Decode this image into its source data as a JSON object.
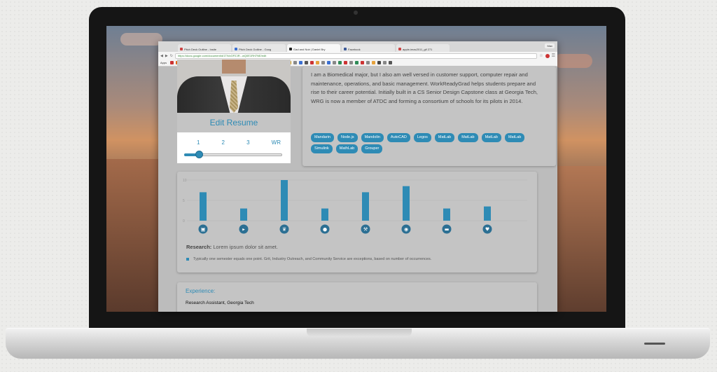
{
  "browser": {
    "tabs": [
      {
        "label": "Pitch Deck Outline - Insite",
        "favicon": "#c44"
      },
      {
        "label": "Pitch Deck Outline - Goog",
        "favicon": "#3b6fd1"
      },
      {
        "label": "Gad and Noir | Daniel Bry",
        "favicon": "#222"
      },
      {
        "label": "Facebook",
        "favicon": "#3b5998"
      },
      {
        "label": "apple-imac2011_gif 271",
        "favicon": "#c44"
      }
    ],
    "window_label": "Max",
    "url": "https://docs.google.com/document/d/1TlVoGPZJR...wQ0E1RH7NE/edit",
    "bookmarks_apps_label": "Apps",
    "bookmark_colors": [
      "#c33",
      "#e06a1a",
      "#c33",
      "#3b5998",
      "#3b6fd1",
      "#555",
      "#2e8b57",
      "#c33",
      "#888",
      "#3b6fd1",
      "#aaa",
      "#333",
      "#2a7ae2",
      "#1a8f3a",
      "#888",
      "#c33",
      "#666",
      "#3b6fd1",
      "#888",
      "#2a7ae2",
      "#c33",
      "#d4a017",
      "#888",
      "#3b6fd1",
      "#555",
      "#c33",
      "#e6a23c",
      "#888",
      "#3b6fd1",
      "#888",
      "#2e8b57",
      "#c33",
      "#888",
      "#2e8b57",
      "#c33",
      "#888",
      "#e6a23c",
      "#444",
      "#888",
      "#555"
    ]
  },
  "profile": {
    "edit_resume_label": "Edit Resume",
    "steps": [
      "1",
      "2",
      "3",
      "WR"
    ],
    "slider_value": 0.15
  },
  "bio": {
    "text": "I am a Biomedical major, but I also am well versed in customer support, computer repair and maintenance, operations, and basic management. WorkReadyGrad helps students prepare and rise to their career potential. Initially built in a CS Senior Design Capstone class at Georgia Tech, WRG is now a member of ATDC and forming a consortium of schools for its pilots in 2014.",
    "skills": [
      "Mandarin",
      "Node.js",
      "Mandolin",
      "AutoCAD",
      "Legos",
      "MatLab",
      "MatLab",
      "MatLab",
      "MatLab",
      "Simulink",
      "MathLab",
      "Grouper"
    ]
  },
  "chart_data": {
    "type": "bar",
    "categories": [
      "lock",
      "megaphone",
      "crown",
      "lightbulb",
      "wrench",
      "globe",
      "chat",
      "heart"
    ],
    "values": [
      7,
      3,
      10,
      3,
      7,
      8.5,
      3,
      3.5
    ],
    "ylim": [
      0,
      10
    ],
    "ytick_labels": [
      "10",
      "5",
      "0"
    ],
    "bar_color": "#2e8bb5"
  },
  "research": {
    "label": "Research:",
    "text": "Lorem ipsum dolor sit amet.",
    "note": "Typically one semester equals one point. Grit, Industry Outreach, and Community Service are exceptions, based on number of occurrences."
  },
  "experience": {
    "title": "Experience:",
    "role": "Research Assistant, Georgia Tech"
  }
}
